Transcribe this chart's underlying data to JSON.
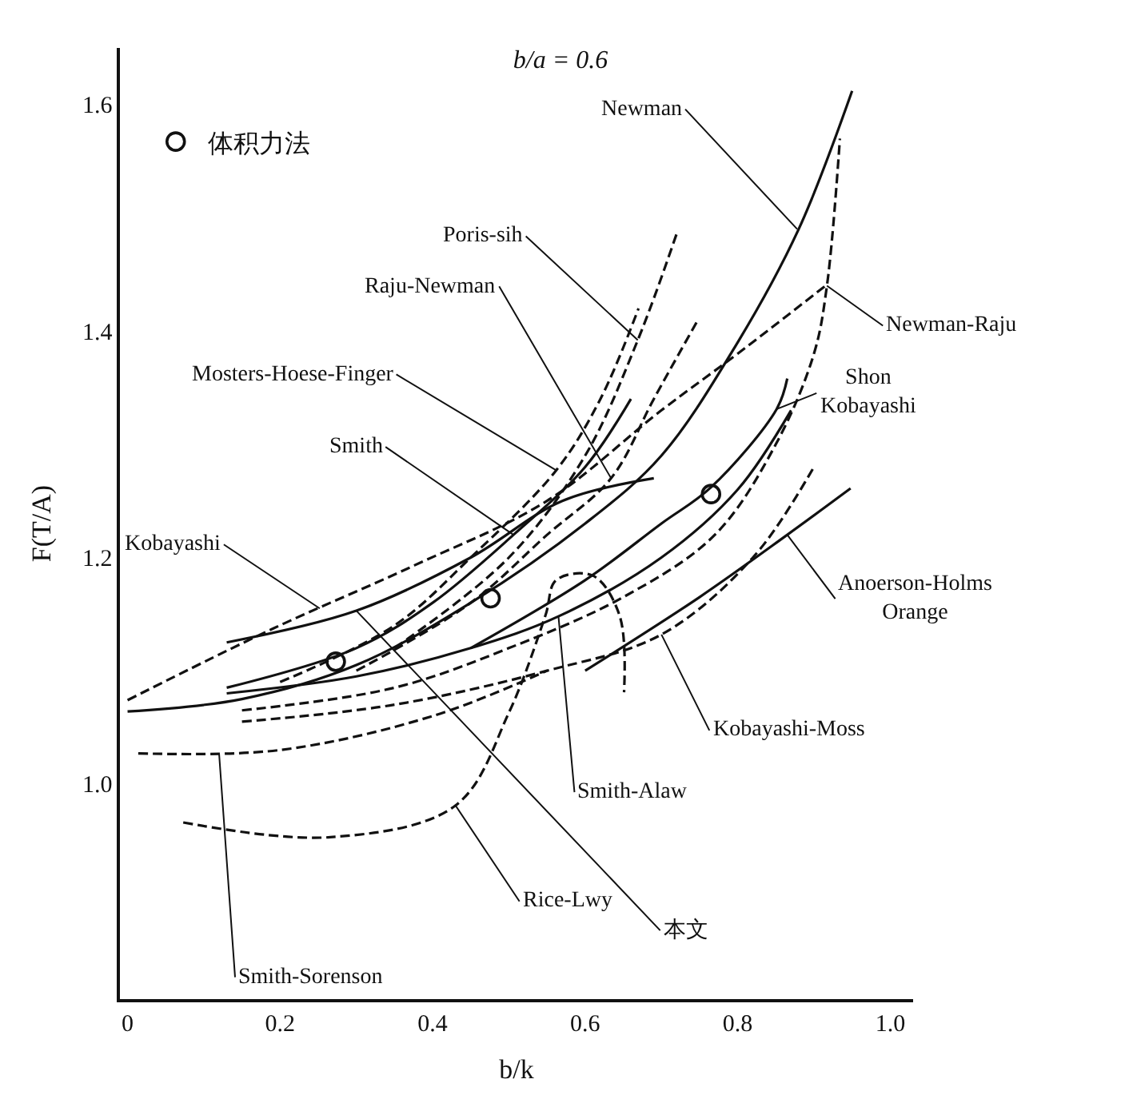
{
  "chart_data": {
    "type": "line",
    "title": "b/a = 0.6",
    "xlabel": "b/k",
    "ylabel": "F(T/A)",
    "xlim": [
      -0.01,
      1.03
    ],
    "ylim": [
      0.81,
      1.65
    ],
    "xticks": [
      0,
      0.2,
      0.4,
      0.6,
      0.8,
      {
        "value": 1,
        "label": "1.0"
      }
    ],
    "yticks": [
      {
        "value": 1,
        "label": "1.0"
      },
      1.2,
      1.4,
      1.6
    ],
    "legend": "top left",
    "marker": "none",
    "series": [
      {
        "color": "#111111",
        "line_style": "solid",
        "x": [
          0,
          0.15,
          0.3,
          0.45,
          0.6,
          0.7,
          0.8,
          0.88,
          0.95
        ],
        "values": [
          1.064,
          1.075,
          1.105,
          1.16,
          1.23,
          1.29,
          1.39,
          1.49,
          1.612
        ]
      },
      {
        "color": "#111111",
        "line_style": "solid",
        "x": [
          0.13,
          0.3,
          0.45,
          0.57,
          0.69
        ],
        "values": [
          1.125,
          1.153,
          1.2,
          1.25,
          1.27
        ]
      },
      {
        "color": "#111111",
        "line_style": "dashed",
        "x": [
          0,
          0.19,
          0.376,
          0.55,
          0.7,
          0.8,
          0.917
        ],
        "values": [
          1.074,
          1.137,
          1.193,
          1.25,
          1.33,
          1.38,
          1.441
        ]
      },
      {
        "color": "#111111",
        "line_style": "dashed",
        "x": [
          0.15,
          0.35,
          0.5,
          0.65,
          0.77,
          0.85,
          0.9,
          0.917,
          0.934
        ],
        "values": [
          1.065,
          1.085,
          1.12,
          1.165,
          1.22,
          1.3,
          1.38,
          1.44,
          1.57
        ]
      },
      {
        "color": "#111111",
        "line_style": "dashed",
        "x": [
          0.15,
          0.35,
          0.55,
          0.7,
          0.82,
          0.9
        ],
        "values": [
          1.055,
          1.07,
          1.1,
          1.132,
          1.2,
          1.28
        ]
      },
      {
        "color": "#111111",
        "line_style": "solid",
        "x": [
          0.6,
          0.75,
          0.865,
          0.948
        ],
        "values": [
          1.1,
          1.165,
          1.22,
          1.261
        ]
      },
      {
        "color": "#111111",
        "line_style": "solid",
        "x": [
          0.13,
          0.3,
          0.45,
          0.565,
          0.7,
          0.8,
          0.87
        ],
        "values": [
          1.08,
          1.095,
          1.12,
          1.148,
          1.2,
          1.26,
          1.33
        ]
      },
      {
        "color": "#111111",
        "line_style": "solid",
        "x": [
          0.13,
          0.3,
          0.4,
          0.506,
          0.6,
          0.66
        ],
        "values": [
          1.085,
          1.12,
          1.16,
          1.22,
          1.28,
          1.34
        ]
      },
      {
        "color": "#111111",
        "line_style": "dashed",
        "x": [
          0.2,
          0.35,
          0.45,
          0.562,
          0.62,
          0.67
        ],
        "values": [
          1.09,
          1.14,
          1.2,
          1.277,
          1.34,
          1.42
        ]
      },
      {
        "color": "#111111",
        "line_style": "dashed",
        "x": [
          0.3,
          0.45,
          0.55,
          0.634,
          0.69,
          0.748
        ],
        "values": [
          1.1,
          1.16,
          1.22,
          1.27,
          1.34,
          1.41
        ]
      },
      {
        "color": "#111111",
        "line_style": "dashed",
        "x": [
          0.35,
          0.5,
          0.6,
          0.669,
          0.72
        ],
        "values": [
          1.12,
          1.2,
          1.29,
          1.392,
          1.486
        ]
      },
      {
        "color": "#111111",
        "line_style": "dashed",
        "x": [
          0.014,
          0.2,
          0.4,
          0.55
        ],
        "values": [
          1.027,
          1.03,
          1.06,
          1.1
        ]
      },
      {
        "color": "#111111",
        "line_style": "dashed",
        "x": [
          0.073,
          0.266,
          0.43,
          0.5,
          0.548,
          0.562,
          0.61,
          0.645,
          0.651
        ],
        "values": [
          0.966,
          0.953,
          0.981,
          1.063,
          1.149,
          1.18,
          1.184,
          1.149,
          1.081
        ]
      },
      {
        "color": "#111111",
        "line_style": "solid",
        "x": [
          0.45,
          0.6,
          0.7,
          0.765,
          0.851,
          0.865
        ],
        "values": [
          1.12,
          1.18,
          1.23,
          1.262,
          1.331,
          1.358
        ]
      },
      {
        "name": "体积力法",
        "type": "scatter",
        "marker": "circle",
        "color": "#111111",
        "x": [
          0.273,
          0.476,
          0.765
        ],
        "values": [
          1.108,
          1.164,
          1.256
        ]
      }
    ],
    "annotations": [
      {
        "text": "Newman",
        "x": 0.878,
        "y": 1.49
      },
      {
        "text": "Poris-sih",
        "x": 0.669,
        "y": 1.392
      },
      {
        "text": "Newman-Raju",
        "x": 0.917,
        "y": 1.44
      },
      {
        "text": "Raju-Newman",
        "x": 0.634,
        "y": 1.27
      },
      {
        "text": "Shon\nKobayashi",
        "x": 0.851,
        "y": 1.331
      },
      {
        "text": "Mosters-Hoese-Finger",
        "x": 0.562,
        "y": 1.277
      },
      {
        "text": "Smith",
        "x": 0.506,
        "y": 1.22
      },
      {
        "text": "Kobayashi",
        "x": 0.252,
        "y": 1.155
      },
      {
        "text": "Anoerson-Holms\nOrange",
        "x": 0.865,
        "y": 1.22
      },
      {
        "text": "Kobayashi-Moss",
        "x": 0.7,
        "y": 1.132
      },
      {
        "text": "Smith-Alaw",
        "x": 0.565,
        "y": 1.148
      },
      {
        "text": "Rice-Lwy",
        "x": 0.43,
        "y": 0.981
      },
      {
        "text": "本文",
        "x": 0.3,
        "y": 1.153
      },
      {
        "text": "Smith-Sorenson",
        "x": 0.12,
        "y": 1.027
      }
    ]
  }
}
